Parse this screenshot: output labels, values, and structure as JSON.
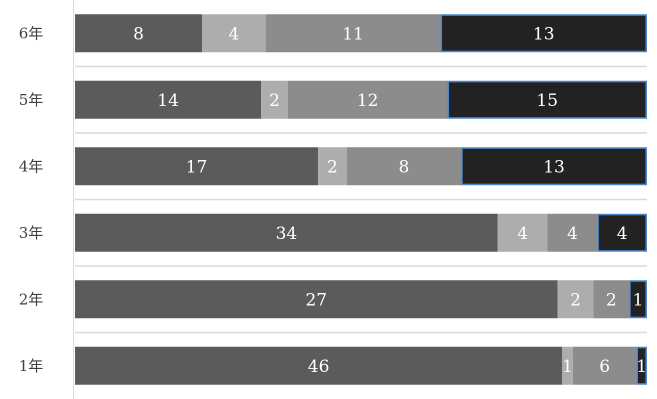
{
  "chart_data": {
    "type": "bar",
    "orientation": "horizontal",
    "stacking": "percent",
    "categories": [
      "6年",
      "5年",
      "4年",
      "3年",
      "2年",
      "1年"
    ],
    "series": [
      {
        "values": [
          8,
          14,
          17,
          34,
          27,
          46
        ],
        "color": "#5b5b5b"
      },
      {
        "values": [
          4,
          2,
          2,
          4,
          2,
          1
        ],
        "color": "#adadad"
      },
      {
        "values": [
          11,
          12,
          8,
          4,
          2,
          6
        ],
        "color": "#8c8c8c"
      },
      {
        "values": [
          13,
          15,
          13,
          4,
          1,
          1
        ],
        "color": "#222222",
        "border_color": "#4a86c8"
      }
    ],
    "title": "",
    "xlabel": "",
    "ylabel": "",
    "legend": "none",
    "grid": true
  }
}
